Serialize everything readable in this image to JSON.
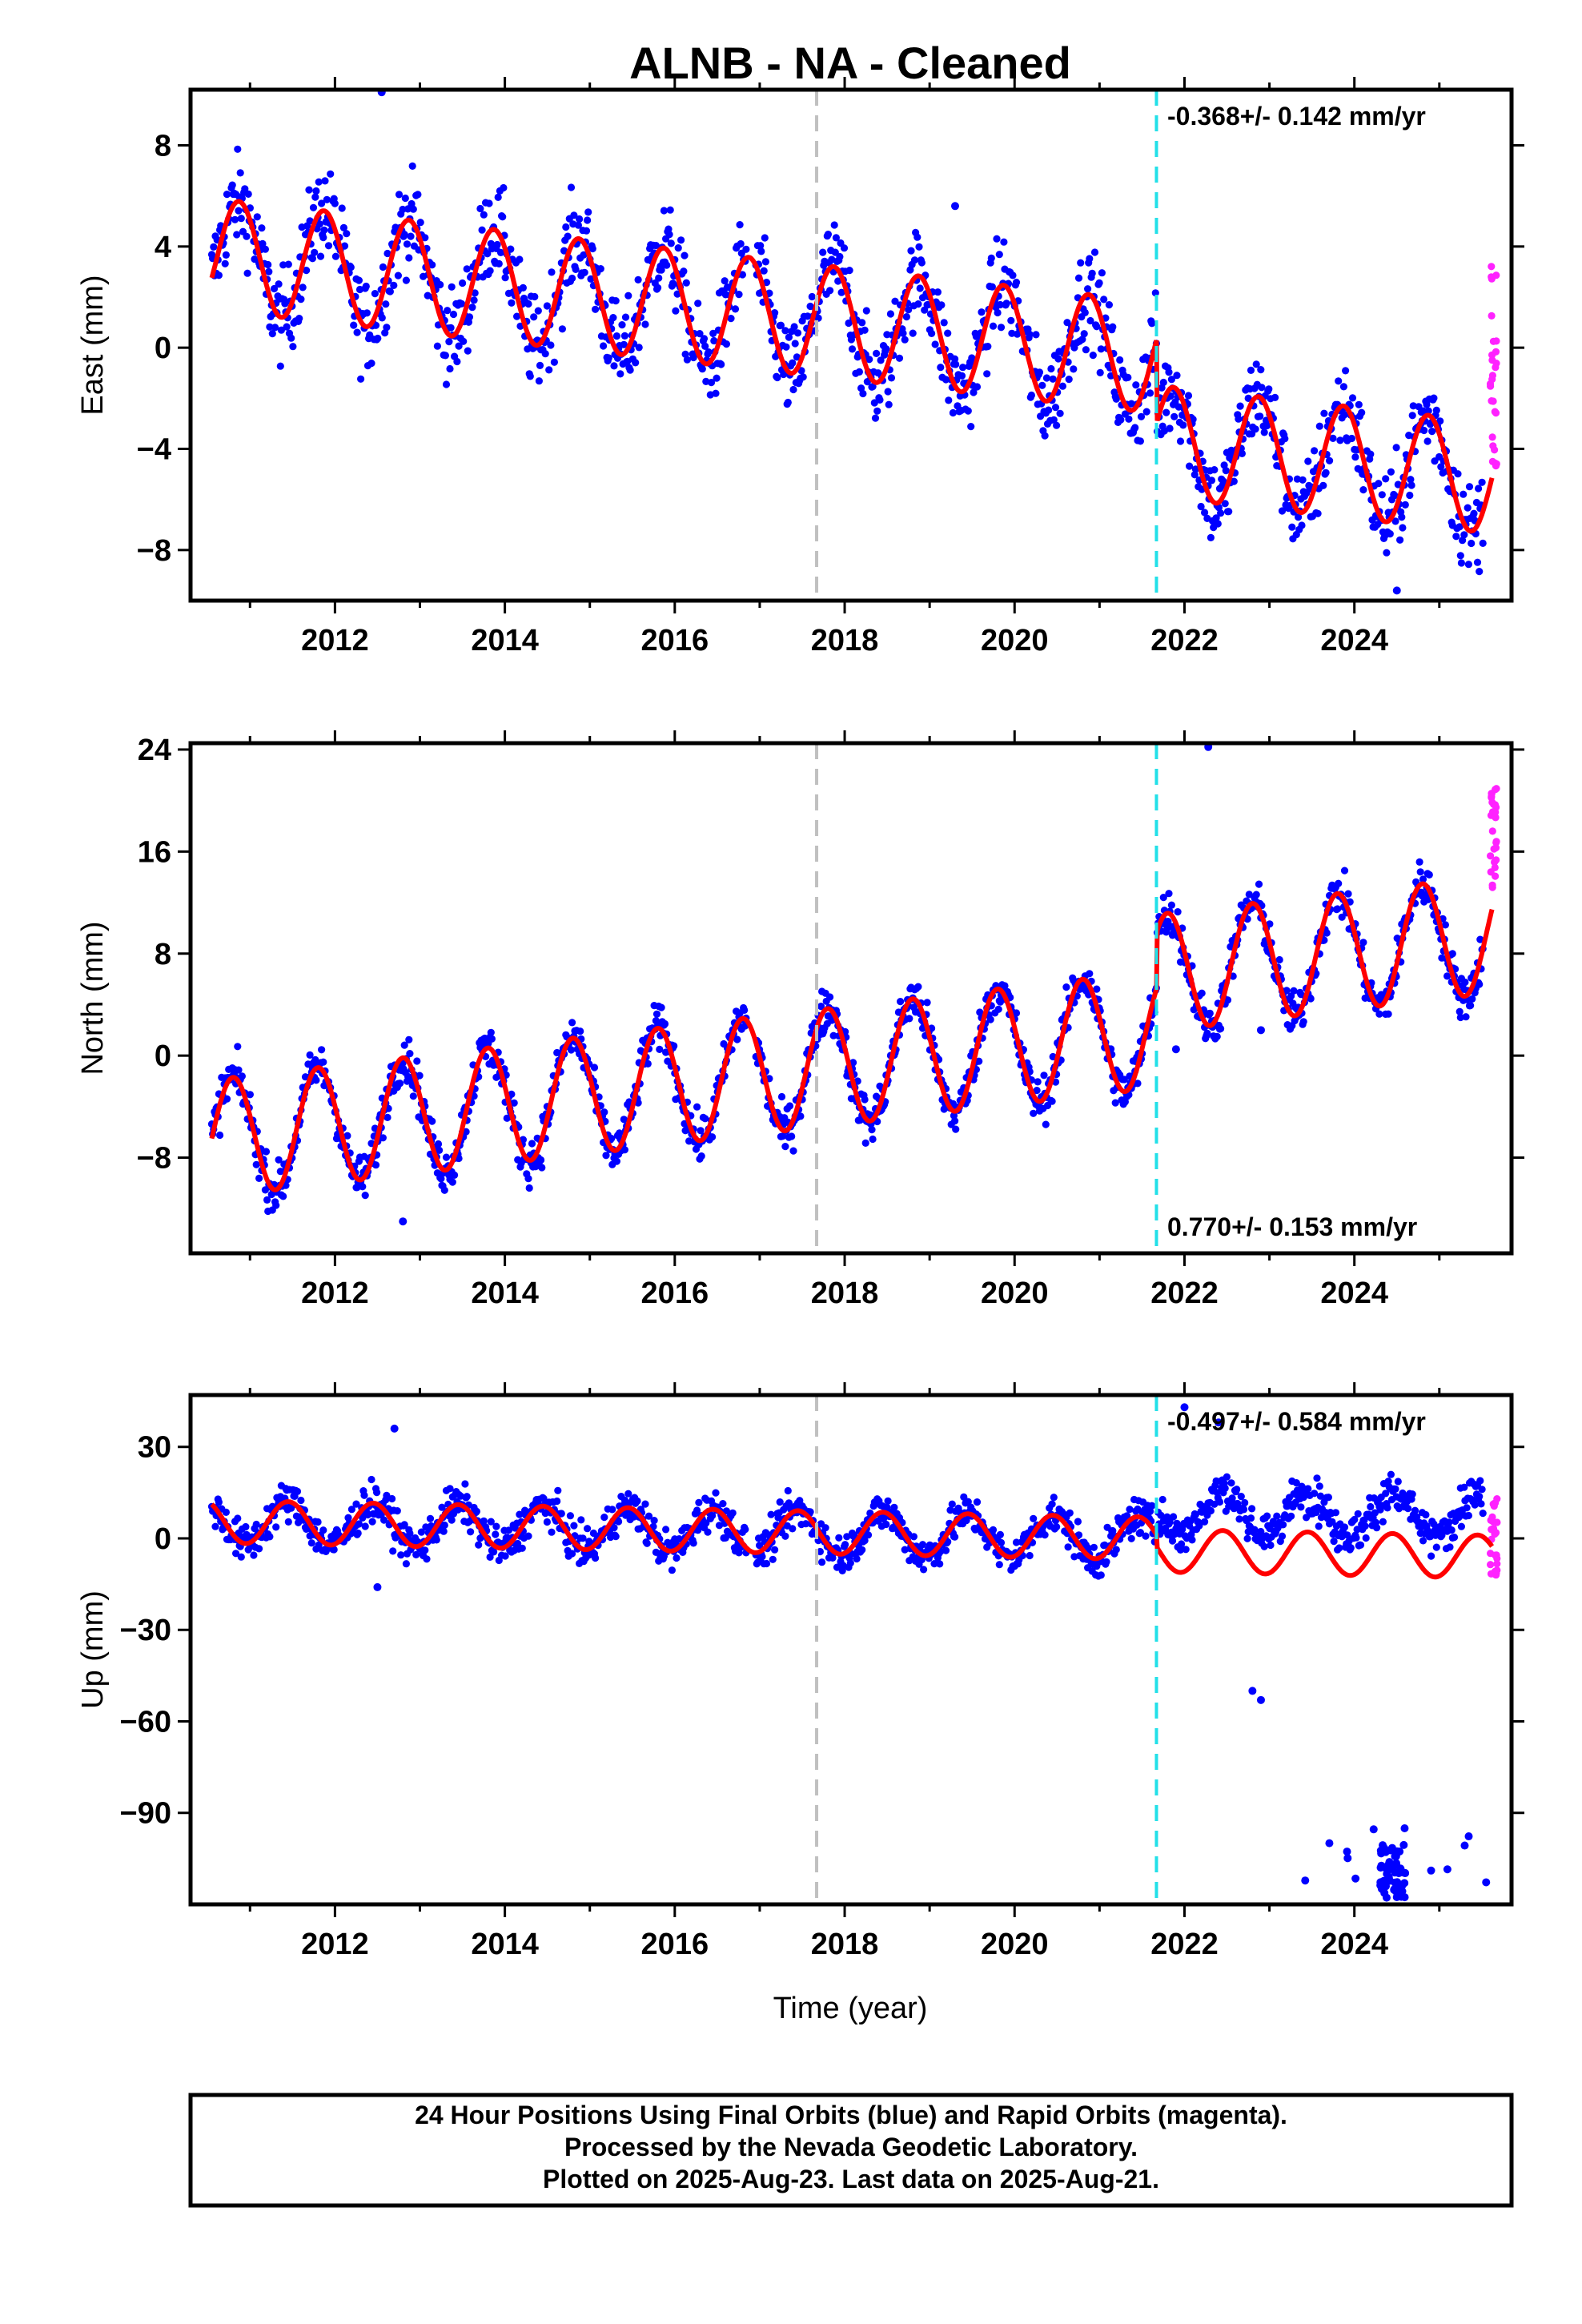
{
  "chart_data": {
    "type": "scatter",
    "title": "ALNB  - NA - Cleaned",
    "xlabel": "Time (year)",
    "xlim": [
      2010.3,
      2025.85
    ],
    "x_ticks": [
      2012,
      2014,
      2016,
      2018,
      2020,
      2022,
      2024
    ],
    "event_lines": [
      {
        "x": 2017.67,
        "color": "#c0c0c0"
      },
      {
        "x": 2021.67,
        "color": "#22e0e8"
      }
    ],
    "colors": {
      "final": "#0000ff",
      "rapid": "#ff22ff",
      "model": "#ff0000"
    },
    "panels": [
      {
        "id": "east",
        "ylabel": "East (mm)",
        "ylim": [
          -10,
          10.2
        ],
        "y_ticks": [
          8,
          4,
          0,
          -4,
          -8
        ],
        "rate": "-0.368+/- 0.142 mm/yr",
        "rate_position": "top-right",
        "model": {
          "offset": 3.7,
          "trend": -0.368,
          "amplitude": 2.2,
          "phase": 0.62,
          "step": -3.3
        },
        "scatter_noise": 1.3,
        "outliers": [
          {
            "x": 2012.55,
            "y": 10.1
          },
          {
            "x": 2019.3,
            "y": 5.6
          },
          {
            "x": 2024.5,
            "y": -9.6
          }
        ],
        "rapid_range": [
          -5.2,
          3.4
        ]
      },
      {
        "id": "north",
        "ylabel": "North (mm)",
        "ylim": [
          -15.5,
          24.5
        ],
        "y_ticks": [
          24,
          16,
          8,
          0,
          -8
        ],
        "rate": "0.770+/- 0.153 mm/yr",
        "rate_position": "bottom-right",
        "model": {
          "offset": -6.5,
          "trend": 0.77,
          "amplitude": 4.6,
          "phase": 0.55,
          "step": 4.4
        },
        "scatter_noise": 1.3,
        "outliers": [
          {
            "x": 2022.28,
            "y": 24.2
          },
          {
            "x": 2022.9,
            "y": 2.0
          },
          {
            "x": 2021.9,
            "y": 0.5
          },
          {
            "x": 2012.8,
            "y": -13.0
          }
        ],
        "rapid_range": [
          13.0,
          22.0
        ]
      },
      {
        "id": "up",
        "ylabel": "Up (mm)",
        "ylim": [
          -120,
          47
        ],
        "y_ticks": [
          30,
          0,
          -30,
          -60,
          -90
        ],
        "rate": "-0.497+/- 0.584 mm/yr",
        "rate_position": "top-right",
        "model": {
          "offset": 5.5,
          "trend": -0.497,
          "amplitude": 7.0,
          "phase": 0.2,
          "step": -4.0
        },
        "scatter_noise": 4.5,
        "outliers": [
          {
            "x": 2012.7,
            "y": 36
          },
          {
            "x": 2022.4,
            "y": 38
          },
          {
            "x": 2022.8,
            "y": -50
          },
          {
            "x": 2022.9,
            "y": -53
          },
          {
            "x": 2012.5,
            "y": -16
          },
          {
            "x": 2022.0,
            "y": 43
          }
        ],
        "low_cluster": {
          "x_range": [
            2023.1,
            2025.6
          ],
          "y_range": [
            -115,
            -95
          ]
        },
        "rapid_range": [
          -12,
          13
        ]
      }
    ],
    "footer": [
      "24 Hour Positions Using Final Orbits (blue) and Rapid Orbits (magenta).",
      "Processed by the Nevada Geodetic Laboratory.",
      "Plotted on 2025-Aug-23. Last data on 2025-Aug-21."
    ]
  }
}
